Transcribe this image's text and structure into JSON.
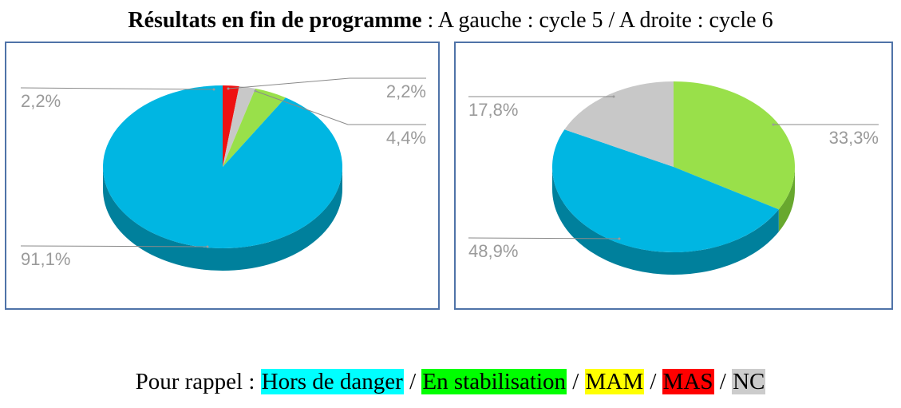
{
  "title": {
    "bold": "Résultats en fin de programme",
    "rest": " : A gauche : cycle 5 / A droite : cycle 6"
  },
  "legend": {
    "prefix": "Pour rappel : ",
    "separator": " / ",
    "items": [
      {
        "label": "Hors de danger",
        "color": "#00ffff"
      },
      {
        "label": "En stabilisation",
        "color": "#00ff00"
      },
      {
        "label": "MAM",
        "color": "#ffff00"
      },
      {
        "label": "MAS",
        "color": "#ff0000"
      },
      {
        "label": "NC",
        "color": "#cccccc"
      }
    ]
  },
  "chart_data": [
    {
      "type": "pie",
      "style": "3d",
      "subtitle": "cycle 5",
      "slices": [
        {
          "category": "MAS",
          "value": 2.2,
          "label": "2,2%",
          "color": "#ee1111",
          "side": "#aa0000"
        },
        {
          "category": "NC",
          "value": 2.2,
          "label": "2,2%",
          "color": "#c8c8c8",
          "side": "#8f8f8f"
        },
        {
          "category": "En stabilisation",
          "value": 4.4,
          "label": "4,4%",
          "color": "#99e04a",
          "side": "#68a82e"
        },
        {
          "category": "Hors de danger",
          "value": 91.1,
          "label": "91,1%",
          "color": "#00b6e2",
          "side": "#00809c"
        }
      ]
    },
    {
      "type": "pie",
      "style": "3d",
      "subtitle": "cycle 6",
      "slices": [
        {
          "category": "En stabilisation",
          "value": 33.3,
          "label": "33,3%",
          "color": "#99e04a",
          "side": "#68a82e"
        },
        {
          "category": "Hors de danger",
          "value": 48.9,
          "label": "48,9%",
          "color": "#00b6e2",
          "side": "#00809c"
        },
        {
          "category": "NC",
          "value": 17.8,
          "label": "17,8%",
          "color": "#c8c8c8",
          "side": "#8f8f8f"
        }
      ]
    }
  ]
}
